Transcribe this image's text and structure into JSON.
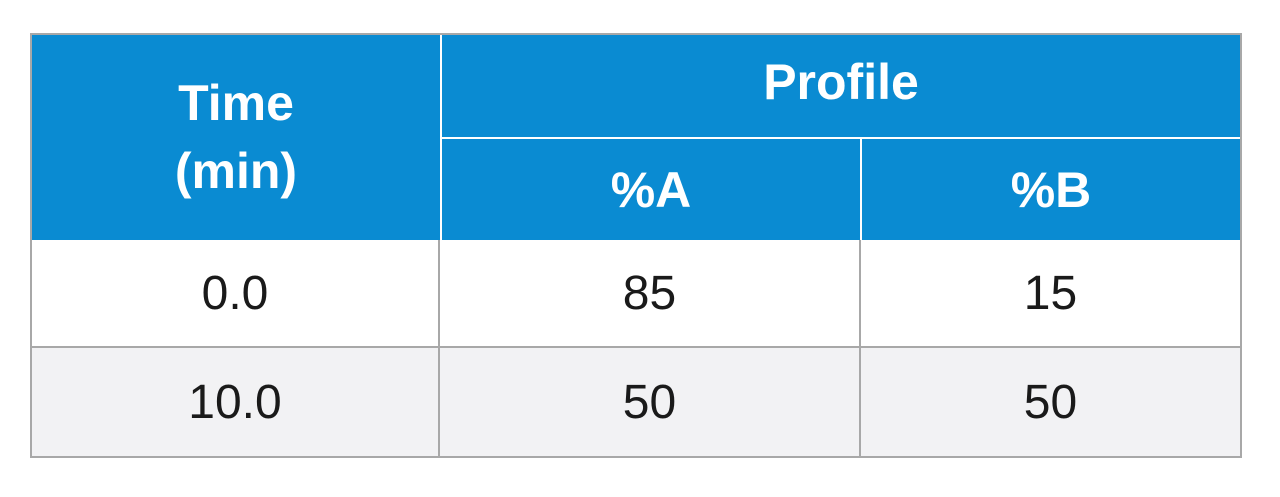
{
  "table": {
    "header": {
      "time": "Time (min)",
      "profile": "Profile",
      "columns": [
        "%A",
        "%B"
      ]
    },
    "rows": [
      [
        "0.0",
        "85",
        "15"
      ],
      [
        "10.0",
        "50",
        "50"
      ]
    ]
  }
}
